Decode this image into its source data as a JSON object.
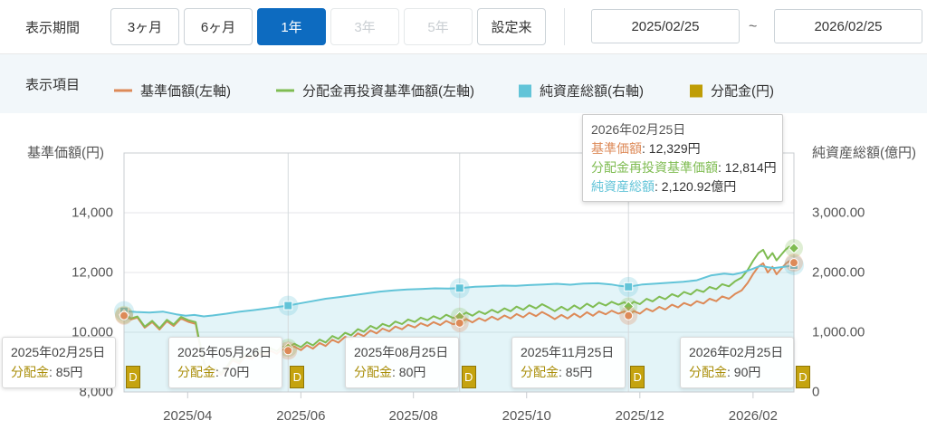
{
  "header": {
    "period_label": "表示期間",
    "periods": [
      {
        "label": "3ヶ月",
        "state": "normal"
      },
      {
        "label": "6ヶ月",
        "state": "normal"
      },
      {
        "label": "1年",
        "state": "selected"
      },
      {
        "label": "3年",
        "state": "disabled"
      },
      {
        "label": "5年",
        "state": "disabled"
      },
      {
        "label": "設定来",
        "state": "normal"
      }
    ],
    "date_from": "2025/02/25",
    "date_separator": "~",
    "date_to": "2026/02/25"
  },
  "legend": {
    "label": "表示項目",
    "items": [
      {
        "label": "基準価額(左軸)",
        "marker": "line",
        "color": "#dd8a58"
      },
      {
        "label": "分配金再投資基準価額(左軸)",
        "marker": "line",
        "color": "#7fbc52"
      },
      {
        "label": "純資産総額(右軸)",
        "marker": "square",
        "color": "#62c4d8"
      },
      {
        "label": "分配金(円)",
        "marker": "square",
        "color": "#bf9d06"
      }
    ]
  },
  "tooltip": {
    "date": "2026年02月25日",
    "rows": [
      {
        "label": "基準価額",
        "value": "12,329円",
        "color": "#dd8a58"
      },
      {
        "label": "分配金再投資基準価額",
        "value": "12,814円",
        "color": "#7fbc52"
      },
      {
        "label": "純資産総額",
        "value": "2,120.92億円",
        "color": "#62c4d8"
      }
    ]
  },
  "chart_data": {
    "type": "line",
    "x_range": [
      "2025/02/25",
      "2026/02/25"
    ],
    "left_axis": {
      "title": "基準価額(円)",
      "min": 8000,
      "max": 16000,
      "ticks": [
        {
          "v": 14000,
          "label": "14,000"
        },
        {
          "v": 12000,
          "label": "12,000"
        },
        {
          "v": 10000,
          "label": "10,000"
        },
        {
          "v": 8000,
          "label": "8,000"
        }
      ]
    },
    "right_axis": {
      "title": "純資産総額(億円)",
      "min": 0,
      "max": 4000,
      "ticks": [
        {
          "v": 3000,
          "label": "3,000.00"
        },
        {
          "v": 2000,
          "label": "2,000.00"
        },
        {
          "v": 1000,
          "label": "1,000.00"
        },
        {
          "v": 0,
          "label": "0"
        }
      ]
    },
    "x_ticks": [
      {
        "f": 0.095,
        "label": "2025/04"
      },
      {
        "f": 0.264,
        "label": "2025/06"
      },
      {
        "f": 0.432,
        "label": "2025/08"
      },
      {
        "f": 0.601,
        "label": "2025/10"
      },
      {
        "f": 0.77,
        "label": "2025/12"
      },
      {
        "f": 0.939,
        "label": "2026/02"
      }
    ],
    "series": [
      {
        "name": "基準価額",
        "axis": "left",
        "style": "line",
        "color": "#dd8a58",
        "points": [
          [
            0.0,
            10554
          ],
          [
            0.011,
            10430
          ],
          [
            0.02,
            10492
          ],
          [
            0.031,
            10150
          ],
          [
            0.042,
            10340
          ],
          [
            0.053,
            10090
          ],
          [
            0.064,
            10370
          ],
          [
            0.074,
            10210
          ],
          [
            0.085,
            10460
          ],
          [
            0.096,
            10350
          ],
          [
            0.107,
            10280
          ],
          [
            0.112,
            9690
          ],
          [
            0.12,
            8900
          ],
          [
            0.128,
            8460
          ],
          [
            0.136,
            8740
          ],
          [
            0.145,
            8570
          ],
          [
            0.153,
            8770
          ],
          [
            0.162,
            9060
          ],
          [
            0.172,
            8950
          ],
          [
            0.181,
            9200
          ],
          [
            0.191,
            9100
          ],
          [
            0.2,
            9300
          ],
          [
            0.209,
            9210
          ],
          [
            0.219,
            9380
          ],
          [
            0.228,
            9280
          ],
          [
            0.236,
            9420
          ],
          [
            0.245,
            9385
          ],
          [
            0.254,
            9520
          ],
          [
            0.264,
            9400
          ],
          [
            0.273,
            9560
          ],
          [
            0.282,
            9450
          ],
          [
            0.292,
            9640
          ],
          [
            0.301,
            9540
          ],
          [
            0.311,
            9750
          ],
          [
            0.32,
            9650
          ],
          [
            0.33,
            9850
          ],
          [
            0.339,
            9760
          ],
          [
            0.349,
            9960
          ],
          [
            0.358,
            9870
          ],
          [
            0.368,
            10060
          ],
          [
            0.377,
            9960
          ],
          [
            0.386,
            10120
          ],
          [
            0.396,
            10030
          ],
          [
            0.405,
            10190
          ],
          [
            0.415,
            10100
          ],
          [
            0.424,
            10250
          ],
          [
            0.434,
            10160
          ],
          [
            0.443,
            10300
          ],
          [
            0.453,
            10210
          ],
          [
            0.462,
            10340
          ],
          [
            0.472,
            10240
          ],
          [
            0.481,
            10380
          ],
          [
            0.491,
            10270
          ],
          [
            0.501,
            10308
          ],
          [
            0.511,
            10440
          ],
          [
            0.52,
            10330
          ],
          [
            0.53,
            10470
          ],
          [
            0.539,
            10380
          ],
          [
            0.549,
            10520
          ],
          [
            0.558,
            10420
          ],
          [
            0.568,
            10560
          ],
          [
            0.577,
            10460
          ],
          [
            0.586,
            10610
          ],
          [
            0.596,
            10500
          ],
          [
            0.605,
            10650
          ],
          [
            0.615,
            10540
          ],
          [
            0.624,
            10680
          ],
          [
            0.634,
            10560
          ],
          [
            0.643,
            10440
          ],
          [
            0.653,
            10580
          ],
          [
            0.662,
            10460
          ],
          [
            0.672,
            10620
          ],
          [
            0.681,
            10500
          ],
          [
            0.691,
            10670
          ],
          [
            0.7,
            10550
          ],
          [
            0.709,
            10700
          ],
          [
            0.719,
            10600
          ],
          [
            0.728,
            10720
          ],
          [
            0.738,
            10620
          ],
          [
            0.747,
            10700
          ],
          [
            0.753,
            10554
          ],
          [
            0.761,
            10710
          ],
          [
            0.77,
            10620
          ],
          [
            0.78,
            10790
          ],
          [
            0.789,
            10700
          ],
          [
            0.799,
            10850
          ],
          [
            0.808,
            10760
          ],
          [
            0.818,
            10920
          ],
          [
            0.827,
            10830
          ],
          [
            0.836,
            10980
          ],
          [
            0.846,
            10890
          ],
          [
            0.855,
            11040
          ],
          [
            0.865,
            10960
          ],
          [
            0.874,
            11120
          ],
          [
            0.884,
            11040
          ],
          [
            0.893,
            11200
          ],
          [
            0.903,
            11120
          ],
          [
            0.912,
            11280
          ],
          [
            0.922,
            11400
          ],
          [
            0.931,
            11650
          ],
          [
            0.939,
            11950
          ],
          [
            0.947,
            12200
          ],
          [
            0.954,
            12310
          ],
          [
            0.961,
            12000
          ],
          [
            0.968,
            12190
          ],
          [
            0.974,
            11940
          ],
          [
            0.981,
            12120
          ],
          [
            0.988,
            12300
          ],
          [
            0.993,
            12380
          ],
          [
            1.0,
            12329
          ]
        ]
      },
      {
        "name": "分配金再投資基準価額",
        "axis": "left",
        "style": "line",
        "color": "#7fbc52",
        "derived": "nav_plus_gap",
        "gap_keyframes": [
          [
            0.0,
            30
          ],
          [
            0.245,
            92
          ],
          [
            0.501,
            215
          ],
          [
            0.753,
            308
          ],
          [
            1.0,
            485
          ]
        ]
      },
      {
        "name": "純資産総額",
        "axis": "right",
        "style": "area",
        "color": "#62c4d8",
        "fill_opacity": 0.18,
        "points": [
          [
            0.0,
            1354
          ],
          [
            0.018,
            1340
          ],
          [
            0.038,
            1330
          ],
          [
            0.058,
            1345
          ],
          [
            0.078,
            1300
          ],
          [
            0.092,
            1277
          ],
          [
            0.105,
            1290
          ],
          [
            0.119,
            1265
          ],
          [
            0.132,
            1280
          ],
          [
            0.153,
            1310
          ],
          [
            0.173,
            1345
          ],
          [
            0.193,
            1370
          ],
          [
            0.214,
            1400
          ],
          [
            0.234,
            1430
          ],
          [
            0.245,
            1446
          ],
          [
            0.261,
            1480
          ],
          [
            0.281,
            1520
          ],
          [
            0.301,
            1560
          ],
          [
            0.322,
            1590
          ],
          [
            0.342,
            1620
          ],
          [
            0.362,
            1650
          ],
          [
            0.382,
            1680
          ],
          [
            0.403,
            1700
          ],
          [
            0.423,
            1715
          ],
          [
            0.443,
            1725
          ],
          [
            0.464,
            1735
          ],
          [
            0.484,
            1730
          ],
          [
            0.501,
            1738
          ],
          [
            0.524,
            1760
          ],
          [
            0.545,
            1770
          ],
          [
            0.565,
            1780
          ],
          [
            0.585,
            1775
          ],
          [
            0.605,
            1790
          ],
          [
            0.626,
            1800
          ],
          [
            0.646,
            1810
          ],
          [
            0.666,
            1795
          ],
          [
            0.686,
            1815
          ],
          [
            0.707,
            1820
          ],
          [
            0.727,
            1800
          ],
          [
            0.74,
            1775
          ],
          [
            0.753,
            1760
          ],
          [
            0.774,
            1800
          ],
          [
            0.795,
            1815
          ],
          [
            0.815,
            1830
          ],
          [
            0.835,
            1845
          ],
          [
            0.855,
            1870
          ],
          [
            0.876,
            1950
          ],
          [
            0.896,
            1980
          ],
          [
            0.909,
            1965
          ],
          [
            0.923,
            2000
          ],
          [
            0.936,
            2050
          ],
          [
            0.95,
            2110
          ],
          [
            0.961,
            2090
          ],
          [
            0.97,
            2075
          ],
          [
            0.981,
            2090
          ],
          [
            0.991,
            2105
          ],
          [
            1.0,
            2120.92
          ]
        ]
      }
    ],
    "distributions": [
      {
        "date": "2025年02月25日",
        "amount": "85円",
        "f": 0.0,
        "nav": 10554,
        "reinvest": 10584,
        "assets": 1354
      },
      {
        "date": "2025年05月26日",
        "amount": "70円",
        "f": 0.245,
        "nav": 9385,
        "reinvest": 9477,
        "assets": 1446
      },
      {
        "date": "2025年08月25日",
        "amount": "80円",
        "f": 0.501,
        "nav": 10308,
        "reinvest": 10523,
        "assets": 1738
      },
      {
        "date": "2025年11月25日",
        "amount": "85円",
        "f": 0.753,
        "nav": 10554,
        "reinvest": 10862,
        "assets": 1760
      },
      {
        "date": "2026年02月25日",
        "amount": "90円",
        "f": 1.0,
        "nav": 12329,
        "reinvest": 12814,
        "assets": 2120.92
      }
    ],
    "marker_letter": "D",
    "callout_label": "分配金",
    "colors": {
      "grid": "#e4e6e8",
      "border": "#c8ccd0",
      "date_line": "#d6dadd",
      "gold": "#c5a30f"
    }
  }
}
